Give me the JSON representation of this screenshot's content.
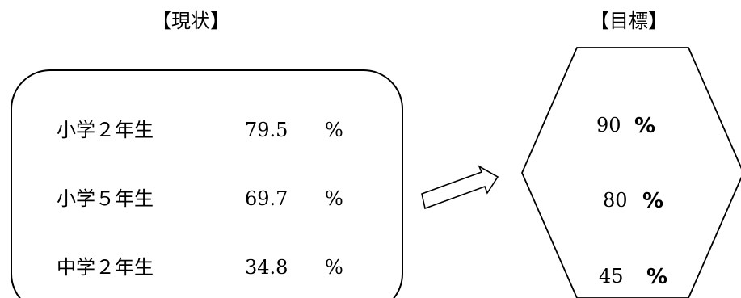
{
  "current": {
    "heading": "【現状】",
    "rows": [
      {
        "label": "小学２年生",
        "value": "79.5",
        "unit": "%"
      },
      {
        "label": "小学５年生",
        "value": "69.7",
        "unit": "%"
      },
      {
        "label": "中学２年生",
        "value": "34.8",
        "unit": "%"
      }
    ]
  },
  "target": {
    "heading": "【目標】",
    "rows": [
      {
        "value": "90",
        "unit": "%"
      },
      {
        "value": "80",
        "unit": "%"
      },
      {
        "value": "45",
        "unit": "%"
      }
    ]
  },
  "colors": {
    "stroke": "#000000",
    "background": "#ffffff"
  }
}
